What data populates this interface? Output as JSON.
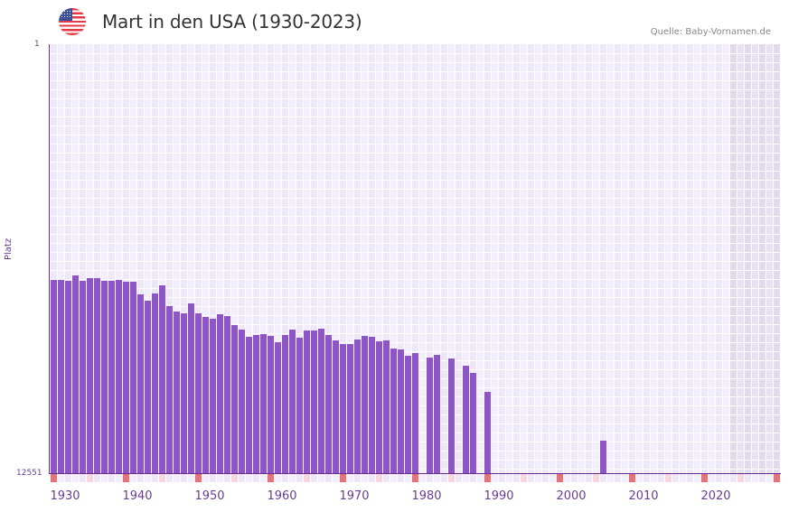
{
  "header": {
    "title": "Mart in den USA (1930-2023)",
    "source": "Quelle: Baby-Vornamen.de",
    "flag": "usa-flag-icon"
  },
  "axis": {
    "y_top_label": "1",
    "y_bottom_label": "12551",
    "y_title": "Platz",
    "x_labels": [
      {
        "text": "1930",
        "x": 72
      },
      {
        "text": "1940",
        "x": 152
      },
      {
        "text": "1950",
        "x": 232
      },
      {
        "text": "1960",
        "x": 312
      },
      {
        "text": "1970",
        "x": 392
      },
      {
        "text": "1980",
        "x": 472
      },
      {
        "text": "1990",
        "x": 552
      },
      {
        "text": "2000",
        "x": 632
      },
      {
        "text": "2010",
        "x": 712
      },
      {
        "text": "2020",
        "x": 792
      }
    ]
  },
  "colors": {
    "bar": "#8e55c6",
    "axis": "#6a2d8f",
    "cell_a": "#ede7f7",
    "cell_b": "#f3effa",
    "shade_a": "#e0dcec",
    "shade_b": "#e6e2ef",
    "mark_strong": "#e5737a",
    "mark_light": "#f6d7de"
  },
  "chart_data": {
    "type": "bar",
    "title": "Mart in den USA (1930-2023)",
    "source": "Quelle: Baby-Vornamen.de",
    "xlabel": "",
    "ylabel": "Platz",
    "y_inverted": true,
    "ylim": [
      12551,
      1
    ],
    "x_range": [
      1928,
      2028
    ],
    "shaded_from_year": 2022,
    "x": [
      1928,
      1929,
      1930,
      1931,
      1932,
      1933,
      1934,
      1935,
      1936,
      1937,
      1938,
      1939,
      1940,
      1941,
      1942,
      1943,
      1944,
      1945,
      1946,
      1947,
      1948,
      1949,
      1950,
      1951,
      1952,
      1953,
      1954,
      1955,
      1956,
      1957,
      1958,
      1959,
      1960,
      1961,
      1962,
      1963,
      1964,
      1965,
      1966,
      1967,
      1968,
      1969,
      1970,
      1971,
      1972,
      1973,
      1974,
      1975,
      1976,
      1977,
      1978,
      1980,
      1981,
      1983,
      1985,
      1986,
      1988,
      2004
    ],
    "values": [
      6898,
      6898,
      6924,
      6766,
      6924,
      6845,
      6845,
      6924,
      6924,
      6898,
      6951,
      6951,
      7321,
      7506,
      7294,
      7056,
      7664,
      7823,
      7876,
      7585,
      7876,
      7981,
      8034,
      7902,
      7955,
      8219,
      8351,
      8563,
      8510,
      8483,
      8536,
      8721,
      8510,
      8351,
      8589,
      8378,
      8378,
      8325,
      8510,
      8668,
      8774,
      8774,
      8642,
      8536,
      8563,
      8695,
      8668,
      8906,
      8932,
      9117,
      9038,
      9170,
      9091,
      9196,
      9408,
      9619,
      10174,
      11601
    ],
    "max_rank": 12551
  }
}
